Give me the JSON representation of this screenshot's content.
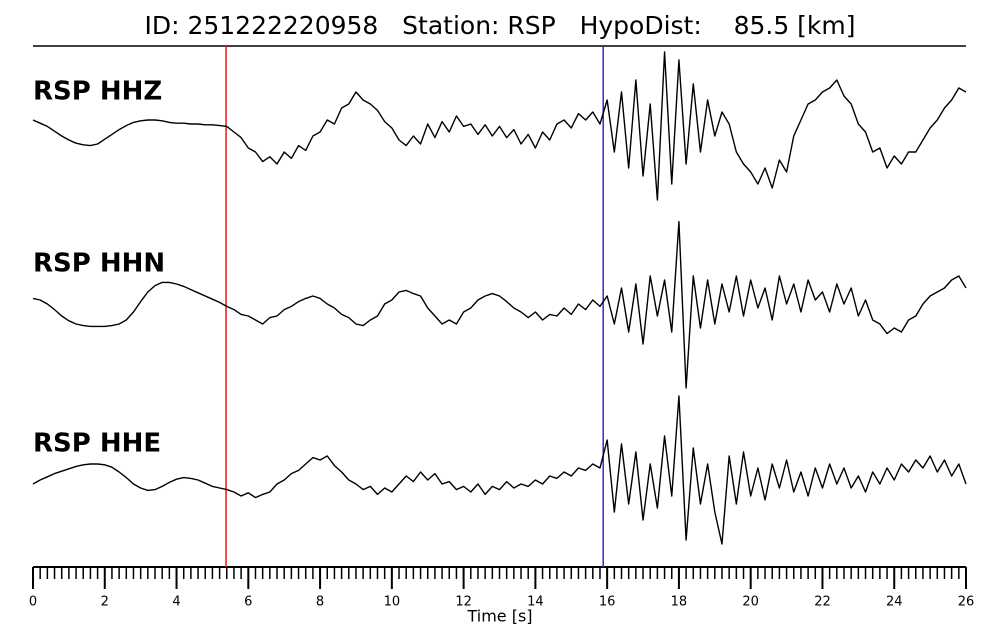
{
  "chart_data": {
    "type": "line",
    "title": "ID: 251222220958   Station: RSP   HypoDist:    85.5 [km]",
    "xlabel": "Time [s]",
    "xlim": [
      0,
      26
    ],
    "xticks": [
      0,
      2,
      4,
      6,
      8,
      10,
      12,
      14,
      16,
      18,
      20,
      22,
      24,
      26
    ],
    "minor_xticks": [
      0,
      0.2,
      0.4,
      0.6,
      0.8,
      1,
      1.2,
      1.4,
      1.6,
      1.8,
      2,
      2.2,
      2.4,
      2.6,
      2.8,
      3,
      3.2,
      3.4,
      3.6,
      3.8,
      4,
      4.2,
      4.4,
      4.6,
      4.8,
      5,
      5.2,
      5.4,
      5.6,
      5.8,
      6,
      6.2,
      6.4,
      6.6,
      6.8,
      7,
      7.2,
      7.4,
      7.6,
      7.8,
      8,
      8.2,
      8.4,
      8.6,
      8.8,
      9,
      9.2,
      9.4,
      9.6,
      9.8,
      10,
      10.2,
      10.4,
      10.6,
      10.8,
      11,
      11.2,
      11.4,
      11.6,
      11.8,
      12,
      12.2,
      12.4,
      12.6,
      12.8,
      13,
      13.2,
      13.4,
      13.6,
      13.8,
      14,
      14.2,
      14.4,
      14.6,
      14.8,
      15,
      15.2,
      15.4,
      15.6,
      15.8,
      16,
      16.2,
      16.4,
      16.6,
      16.8,
      17,
      17.2,
      17.4,
      17.6,
      17.8,
      18,
      18.2,
      18.4,
      18.6,
      18.8,
      19,
      19.2,
      19.4,
      19.6,
      19.8,
      20,
      20.2,
      20.4,
      20.6,
      20.8,
      21,
      21.2,
      21.4,
      21.6,
      21.8,
      22,
      22.2,
      22.4,
      22.6,
      22.8,
      23,
      23.2,
      23.4,
      23.6,
      23.8,
      24,
      24.2,
      24.4,
      24.6,
      24.8,
      25,
      25.2,
      25.4,
      25.6,
      25.8,
      26
    ],
    "x": [
      0,
      0.2,
      0.4,
      0.6,
      0.8,
      1,
      1.2,
      1.4,
      1.6,
      1.8,
      2,
      2.2,
      2.4,
      2.6,
      2.8,
      3,
      3.2,
      3.4,
      3.6,
      3.8,
      4,
      4.2,
      4.4,
      4.6,
      4.8,
      5,
      5.2,
      5.4,
      5.6,
      5.8,
      6,
      6.2,
      6.4,
      6.6,
      6.8,
      7,
      7.2,
      7.4,
      7.6,
      7.8,
      8,
      8.2,
      8.4,
      8.6,
      8.8,
      9,
      9.2,
      9.4,
      9.6,
      9.8,
      10,
      10.2,
      10.4,
      10.6,
      10.8,
      11,
      11.2,
      11.4,
      11.6,
      11.8,
      12,
      12.2,
      12.4,
      12.6,
      12.8,
      13,
      13.2,
      13.4,
      13.6,
      13.8,
      14,
      14.2,
      14.4,
      14.6,
      14.8,
      15,
      15.2,
      15.4,
      15.6,
      15.8,
      16,
      16.2,
      16.4,
      16.6,
      16.8,
      17,
      17.2,
      17.4,
      17.6,
      17.8,
      18,
      18.2,
      18.4,
      18.6,
      18.8,
      19,
      19.2,
      19.4,
      19.6,
      19.8,
      20,
      20.2,
      20.4,
      20.6,
      20.8,
      21,
      21.2,
      21.4,
      21.6,
      21.8,
      22,
      22.2,
      22.4,
      22.6,
      22.8,
      23,
      23.2,
      23.4,
      23.6,
      23.8,
      24,
      24.2,
      24.4,
      24.6,
      24.8,
      25,
      25.2,
      25.4,
      25.6,
      25.8,
      26
    ],
    "picks": [
      {
        "x": 5.38,
        "color": "#e41a1c"
      },
      {
        "x": 15.89,
        "color": "#2b2bd6"
      }
    ],
    "label_color": "#4e9a06",
    "series": [
      {
        "name": "RSP HHZ",
        "color": "#000000",
        "ylim": [
          -1.2,
          1.2
        ],
        "values": [
          0.1,
          0.06,
          0.02,
          -0.04,
          -0.1,
          -0.15,
          -0.19,
          -0.21,
          -0.22,
          -0.2,
          -0.14,
          -0.08,
          -0.02,
          0.03,
          0.07,
          0.09,
          0.1,
          0.1,
          0.09,
          0.07,
          0.06,
          0.06,
          0.05,
          0.05,
          0.04,
          0.04,
          0.03,
          0.02,
          -0.05,
          -0.12,
          -0.25,
          -0.3,
          -0.42,
          -0.36,
          -0.45,
          -0.3,
          -0.38,
          -0.22,
          -0.28,
          -0.1,
          -0.05,
          0.1,
          0.05,
          0.25,
          0.3,
          0.45,
          0.35,
          0.3,
          0.22,
          0.08,
          0,
          -0.15,
          -0.22,
          -0.1,
          -0.2,
          0.05,
          -0.12,
          0.08,
          -0.05,
          0.15,
          0.02,
          0.05,
          -0.08,
          0.04,
          -0.1,
          0.02,
          -0.12,
          -0.02,
          -0.2,
          -0.08,
          -0.25,
          -0.05,
          -0.15,
          0.05,
          0.1,
          0,
          0.18,
          0.1,
          0.2,
          0.05,
          0.35,
          -0.3,
          0.45,
          -0.5,
          0.6,
          -0.6,
          0.3,
          -0.9,
          0.95,
          -0.7,
          0.85,
          -0.45,
          0.55,
          -0.3,
          0.35,
          -0.1,
          0.2,
          0.05,
          -0.3,
          -0.45,
          -0.55,
          -0.7,
          -0.5,
          -0.75,
          -0.4,
          -0.55,
          -0.1,
          0.1,
          0.3,
          0.35,
          0.45,
          0.5,
          0.6,
          0.4,
          0.3,
          0.05,
          -0.05,
          -0.3,
          -0.25,
          -0.5,
          -0.35,
          -0.45,
          -0.3,
          -0.3,
          -0.15,
          0,
          0.1,
          0.25,
          0.35,
          0.5,
          0.45
        ]
      },
      {
        "name": "RSP HHN",
        "color": "#000000",
        "ylim": [
          -1.2,
          1.2
        ],
        "values": [
          0.02,
          0,
          -0.05,
          -0.12,
          -0.2,
          -0.26,
          -0.3,
          -0.32,
          -0.33,
          -0.33,
          -0.33,
          -0.32,
          -0.3,
          -0.25,
          -0.15,
          -0.02,
          0.1,
          0.18,
          0.22,
          0.22,
          0.2,
          0.17,
          0.13,
          0.09,
          0.05,
          0.01,
          -0.03,
          -0.08,
          -0.12,
          -0.18,
          -0.2,
          -0.25,
          -0.3,
          -0.22,
          -0.2,
          -0.12,
          -0.08,
          -0.02,
          0.02,
          0.05,
          0.02,
          -0.05,
          -0.1,
          -0.18,
          -0.22,
          -0.3,
          -0.32,
          -0.25,
          -0.2,
          -0.05,
          0,
          0.1,
          0.12,
          0.08,
          0.05,
          -0.1,
          -0.2,
          -0.3,
          -0.25,
          -0.3,
          -0.15,
          -0.1,
          0,
          0.05,
          0.08,
          0.05,
          -0.02,
          -0.1,
          -0.15,
          -0.22,
          -0.15,
          -0.25,
          -0.18,
          -0.2,
          -0.1,
          -0.18,
          -0.05,
          -0.12,
          0,
          -0.08,
          0.05,
          -0.3,
          0.15,
          -0.4,
          0.2,
          -0.55,
          0.3,
          -0.2,
          0.25,
          -0.4,
          0.98,
          -1.1,
          0.3,
          -0.35,
          0.25,
          -0.3,
          0.2,
          -0.15,
          0.3,
          -0.2,
          0.25,
          -0.1,
          0.15,
          -0.25,
          0.3,
          -0.05,
          0.2,
          -0.15,
          0.25,
          0,
          0.1,
          -0.15,
          0.2,
          -0.05,
          0.15,
          -0.2,
          0,
          -0.25,
          -0.3,
          -0.42,
          -0.35,
          -0.4,
          -0.25,
          -0.2,
          -0.05,
          0.05,
          0.1,
          0.15,
          0.25,
          0.3,
          0.15
        ]
      },
      {
        "name": "RSP HHE",
        "color": "#000000",
        "ylim": [
          -1.2,
          1.2
        ],
        "values": [
          -0.05,
          0,
          0.04,
          0.08,
          0.11,
          0.14,
          0.17,
          0.19,
          0.2,
          0.2,
          0.19,
          0.16,
          0.1,
          0.03,
          -0.05,
          -0.1,
          -0.13,
          -0.12,
          -0.08,
          -0.03,
          0.01,
          0.03,
          0.02,
          0,
          -0.04,
          -0.08,
          -0.1,
          -0.12,
          -0.15,
          -0.2,
          -0.16,
          -0.22,
          -0.18,
          -0.15,
          -0.05,
          0,
          0.08,
          0.12,
          0.2,
          0.28,
          0.25,
          0.3,
          0.18,
          0.1,
          0,
          -0.05,
          -0.12,
          -0.08,
          -0.18,
          -0.1,
          -0.15,
          -0.05,
          0.05,
          -0.02,
          0.1,
          0,
          0.08,
          -0.05,
          -0.02,
          -0.12,
          -0.08,
          -0.15,
          -0.05,
          -0.18,
          -0.08,
          -0.12,
          -0.02,
          -0.1,
          -0.05,
          -0.08,
          0,
          -0.05,
          0.05,
          0.02,
          0.1,
          0.05,
          0.15,
          0.12,
          0.2,
          0.15,
          0.5,
          -0.4,
          0.45,
          -0.3,
          0.35,
          -0.5,
          0.2,
          -0.35,
          0.55,
          -0.2,
          1.05,
          -0.75,
          0.4,
          -0.3,
          0.2,
          -0.4,
          -0.8,
          0.3,
          -0.3,
          0.35,
          -0.2,
          0.15,
          -0.25,
          0.2,
          -0.1,
          0.25,
          -0.15,
          0.1,
          -0.2,
          0.15,
          -0.1,
          0.2,
          -0.05,
          0.15,
          -0.1,
          0.05,
          -0.15,
          0.1,
          -0.05,
          0.15,
          0,
          0.2,
          0.1,
          0.25,
          0.15,
          0.3,
          0.1,
          0.25,
          0.05,
          0.2,
          -0.05
        ]
      }
    ]
  }
}
